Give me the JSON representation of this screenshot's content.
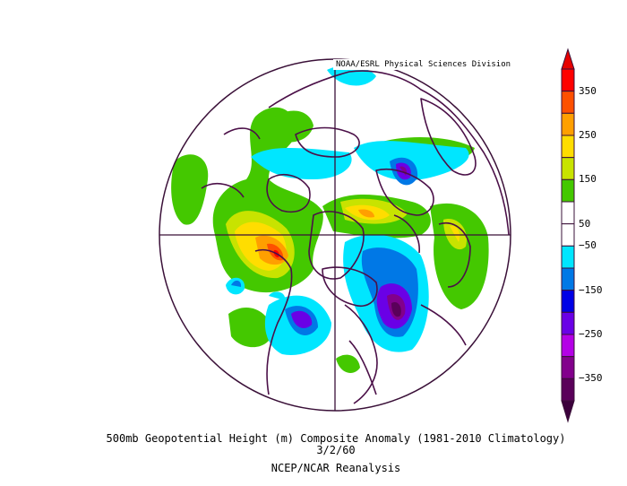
{
  "credit": "NOAA/ESRL Physical Sciences Division",
  "caption": {
    "title": "500mb Geopotential Height (m) Composite Anomaly (1981-2010 Climatology)",
    "date": "3/2/60",
    "source": "NCEP/NCAR Reanalysis"
  },
  "colorbar": {
    "labels": [
      "350",
      "250",
      "150",
      "50",
      "−50",
      "−150",
      "−250",
      "−350"
    ],
    "colors": [
      "#fe0000",
      "#fe5000",
      "#ff9f00",
      "#ffdd00",
      "#c8e300",
      "#44c800",
      "#ffffff",
      "#ffffff",
      "#00e6ff",
      "#0078e6",
      "#0000e6",
      "#6a00e6",
      "#b400e6",
      "#82008c",
      "#5a005a"
    ],
    "top_arrow_color": "#e60000",
    "bottom_arrow_color": "#3c003c"
  }
}
